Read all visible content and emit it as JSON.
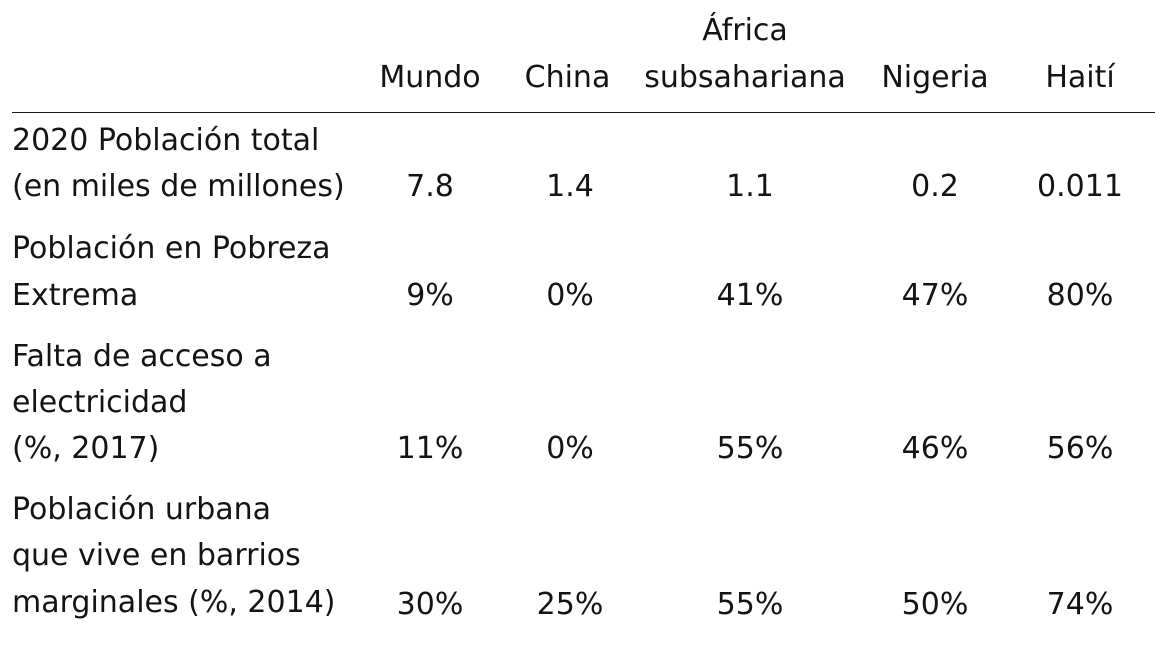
{
  "table": {
    "columns": [
      {
        "line1": "",
        "line2": "Mundo"
      },
      {
        "line1": "",
        "line2": "China"
      },
      {
        "line1": "África",
        "line2": "subsahariana"
      },
      {
        "line1": "",
        "line2": "Nigeria"
      },
      {
        "line1": "",
        "line2": "Haití"
      }
    ],
    "rows": [
      {
        "label_lines": [
          "2020 Población total",
          "(en miles de millones)"
        ],
        "values": [
          "7.8",
          "1.4",
          "1.1",
          "0.2",
          "0.011"
        ]
      },
      {
        "label_lines": [
          "Población en Pobreza",
          "Extrema"
        ],
        "values": [
          "9%",
          "0%",
          "41%",
          "47%",
          "80%"
        ]
      },
      {
        "label_lines": [
          "Falta de acceso a",
          "electricidad",
          "(%, 2017)"
        ],
        "values": [
          "11%",
          "0%",
          "55%",
          "46%",
          "56%"
        ]
      },
      {
        "label_lines": [
          "Población urbana",
          "que vive en barrios",
          "marginales (%, 2014)"
        ],
        "values": [
          "30%",
          "25%",
          "55%",
          "50%",
          "74%"
        ]
      }
    ]
  }
}
